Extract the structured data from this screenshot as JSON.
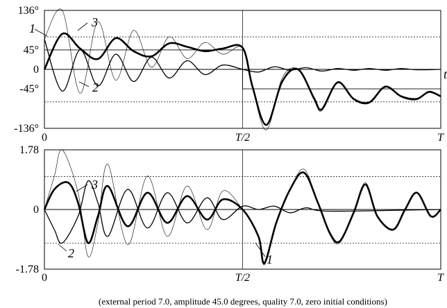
{
  "caption": "(external period  7.0,  amplitude  45.0 degrees,  quality  7.0,  zero initial conditions)",
  "chart_data": [
    {
      "type": "line",
      "panel": "top",
      "y_ticks": [
        "136°",
        "45°",
        "0",
        "-45°",
        "-136°"
      ],
      "y_tick_values": [
        136,
        45,
        0,
        -45,
        -136
      ],
      "ylim": [
        -136,
        136
      ],
      "x_ticks": [
        "0",
        "T/2",
        "T"
      ],
      "xlim": [
        0,
        1
      ],
      "dotted_levels": [
        75,
        0,
        -75
      ],
      "curve_labels": [
        "1",
        "2",
        "3"
      ],
      "extra_label": "t",
      "series": [
        {
          "label": "1",
          "style": "thick",
          "points": [
            [
              0,
              0
            ],
            [
              0.045,
              82
            ],
            [
              0.09,
              48
            ],
            [
              0.135,
              24
            ],
            [
              0.18,
              72
            ],
            [
              0.225,
              42
            ],
            [
              0.27,
              30
            ],
            [
              0.315,
              60
            ],
            [
              0.36,
              52
            ],
            [
              0.405,
              42
            ],
            [
              0.45,
              48
            ],
            [
              0.5,
              50
            ],
            [
              0.525,
              -40
            ],
            [
              0.56,
              -128
            ],
            [
              0.6,
              -28
            ],
            [
              0.64,
              0
            ],
            [
              0.68,
              -66
            ],
            [
              0.7,
              -92
            ],
            [
              0.74,
              -30
            ],
            [
              0.78,
              -68
            ],
            [
              0.82,
              -76
            ],
            [
              0.86,
              -40
            ],
            [
              0.9,
              -62
            ],
            [
              0.94,
              -68
            ],
            [
              0.97,
              -52
            ],
            [
              1.0,
              -62
            ]
          ]
        },
        {
          "label": "2",
          "style": "thin",
          "points": [
            [
              0,
              70
            ],
            [
              0.045,
              -50
            ],
            [
              0.09,
              45
            ],
            [
              0.135,
              -38
            ],
            [
              0.18,
              35
            ],
            [
              0.225,
              -28
            ],
            [
              0.27,
              28
            ],
            [
              0.315,
              -20
            ],
            [
              0.36,
              20
            ],
            [
              0.405,
              -12
            ],
            [
              0.45,
              10
            ],
            [
              0.5,
              0
            ],
            [
              0.54,
              -6
            ],
            [
              0.58,
              6
            ],
            [
              0.62,
              -2
            ],
            [
              0.66,
              4
            ],
            [
              0.7,
              -4
            ],
            [
              0.74,
              2
            ],
            [
              0.78,
              -2
            ],
            [
              0.82,
              2
            ],
            [
              0.86,
              -2
            ],
            [
              0.9,
              2
            ],
            [
              0.94,
              -1
            ],
            [
              1.0,
              0
            ]
          ]
        },
        {
          "label": "3",
          "style": "hair",
          "points": [
            [
              0,
              70
            ],
            [
              0.045,
              136
            ],
            [
              0.09,
              -55
            ],
            [
              0.135,
              110
            ],
            [
              0.18,
              -25
            ],
            [
              0.225,
              90
            ],
            [
              0.27,
              5
            ],
            [
              0.315,
              75
            ],
            [
              0.36,
              25
            ],
            [
              0.405,
              62
            ],
            [
              0.45,
              35
            ],
            [
              0.5,
              50
            ],
            [
              0.525,
              -42
            ],
            [
              0.56,
              -140
            ],
            [
              0.6,
              -20
            ],
            [
              0.64,
              0
            ],
            [
              0.68,
              -70
            ],
            [
              0.7,
              -95
            ],
            [
              0.74,
              -28
            ],
            [
              0.78,
              -70
            ],
            [
              0.82,
              -78
            ],
            [
              0.86,
              -38
            ],
            [
              0.9,
              -64
            ],
            [
              0.94,
              -70
            ],
            [
              0.97,
              -50
            ],
            [
              1.0,
              -62
            ]
          ]
        },
        {
          "label": "step",
          "style": "step",
          "points": [
            [
              0,
              45
            ],
            [
              0.5,
              45
            ],
            [
              0.5,
              -45
            ],
            [
              1.0,
              -45
            ]
          ]
        }
      ]
    },
    {
      "type": "line",
      "panel": "bottom",
      "y_ticks": [
        "1.78",
        "0",
        "-1.78"
      ],
      "y_tick_values": [
        1.78,
        0,
        -1.78
      ],
      "ylim": [
        -1.78,
        1.78
      ],
      "x_ticks": [
        "0",
        "T/2",
        "T"
      ],
      "xlim": [
        0,
        1
      ],
      "dotted_levels": [
        0.98,
        0,
        -1.0
      ],
      "curve_labels": [
        "1",
        "2",
        "3"
      ],
      "series": [
        {
          "label": "1",
          "style": "thick",
          "points": [
            [
              0,
              0
            ],
            [
              0.025,
              0.6
            ],
            [
              0.06,
              0.8
            ],
            [
              0.085,
              0.2
            ],
            [
              0.11,
              -1.0
            ],
            [
              0.135,
              -0.2
            ],
            [
              0.16,
              0.7
            ],
            [
              0.21,
              -0.5
            ],
            [
              0.26,
              0.5
            ],
            [
              0.31,
              -0.4
            ],
            [
              0.36,
              0.4
            ],
            [
              0.41,
              -0.3
            ],
            [
              0.45,
              0.3
            ],
            [
              0.5,
              0
            ],
            [
              0.54,
              -0.8
            ],
            [
              0.555,
              -1.6
            ],
            [
              0.585,
              -0.4
            ],
            [
              0.62,
              0.6
            ],
            [
              0.655,
              1.1
            ],
            [
              0.69,
              0.2
            ],
            [
              0.72,
              -0.7
            ],
            [
              0.745,
              -0.95
            ],
            [
              0.78,
              -0.1
            ],
            [
              0.81,
              0.75
            ],
            [
              0.84,
              -0.2
            ],
            [
              0.88,
              -0.6
            ],
            [
              0.91,
              0
            ],
            [
              0.94,
              0.5
            ],
            [
              0.975,
              -0.2
            ],
            [
              1.0,
              0
            ]
          ]
        },
        {
          "label": "2",
          "style": "thin",
          "points": [
            [
              0,
              0
            ],
            [
              0.025,
              -0.6
            ],
            [
              0.045,
              -1.0
            ],
            [
              0.085,
              -0.2
            ],
            [
              0.11,
              0.85
            ],
            [
              0.135,
              0.2
            ],
            [
              0.16,
              -0.8
            ],
            [
              0.21,
              0.6
            ],
            [
              0.26,
              -0.55
            ],
            [
              0.31,
              0.5
            ],
            [
              0.36,
              -0.4
            ],
            [
              0.41,
              0.35
            ],
            [
              0.45,
              -0.3
            ],
            [
              0.5,
              0.1
            ],
            [
              0.54,
              0
            ],
            [
              0.58,
              0.1
            ],
            [
              0.62,
              -0.1
            ],
            [
              0.66,
              0.05
            ],
            [
              0.72,
              -0.05
            ],
            [
              1.0,
              0
            ]
          ]
        },
        {
          "label": "3",
          "style": "hair",
          "points": [
            [
              0,
              0
            ],
            [
              0.025,
              1.0
            ],
            [
              0.045,
              1.78
            ],
            [
              0.085,
              0.5
            ],
            [
              0.11,
              -1.4
            ],
            [
              0.135,
              -0.4
            ],
            [
              0.16,
              1.35
            ],
            [
              0.21,
              -1.05
            ],
            [
              0.26,
              1.0
            ],
            [
              0.31,
              -0.8
            ],
            [
              0.36,
              0.7
            ],
            [
              0.41,
              -0.6
            ],
            [
              0.45,
              0.55
            ],
            [
              0.5,
              0
            ],
            [
              0.54,
              -0.8
            ],
            [
              0.555,
              -1.65
            ],
            [
              0.585,
              -0.4
            ],
            [
              0.62,
              0.6
            ],
            [
              0.655,
              1.2
            ],
            [
              0.69,
              0.2
            ],
            [
              0.72,
              -0.75
            ],
            [
              0.745,
              -1.0
            ],
            [
              0.78,
              -0.1
            ],
            [
              0.81,
              0.8
            ],
            [
              0.84,
              -0.2
            ],
            [
              0.88,
              -0.62
            ],
            [
              0.91,
              0
            ],
            [
              0.94,
              0.52
            ],
            [
              0.975,
              -0.22
            ],
            [
              1.0,
              0
            ]
          ]
        }
      ]
    }
  ]
}
